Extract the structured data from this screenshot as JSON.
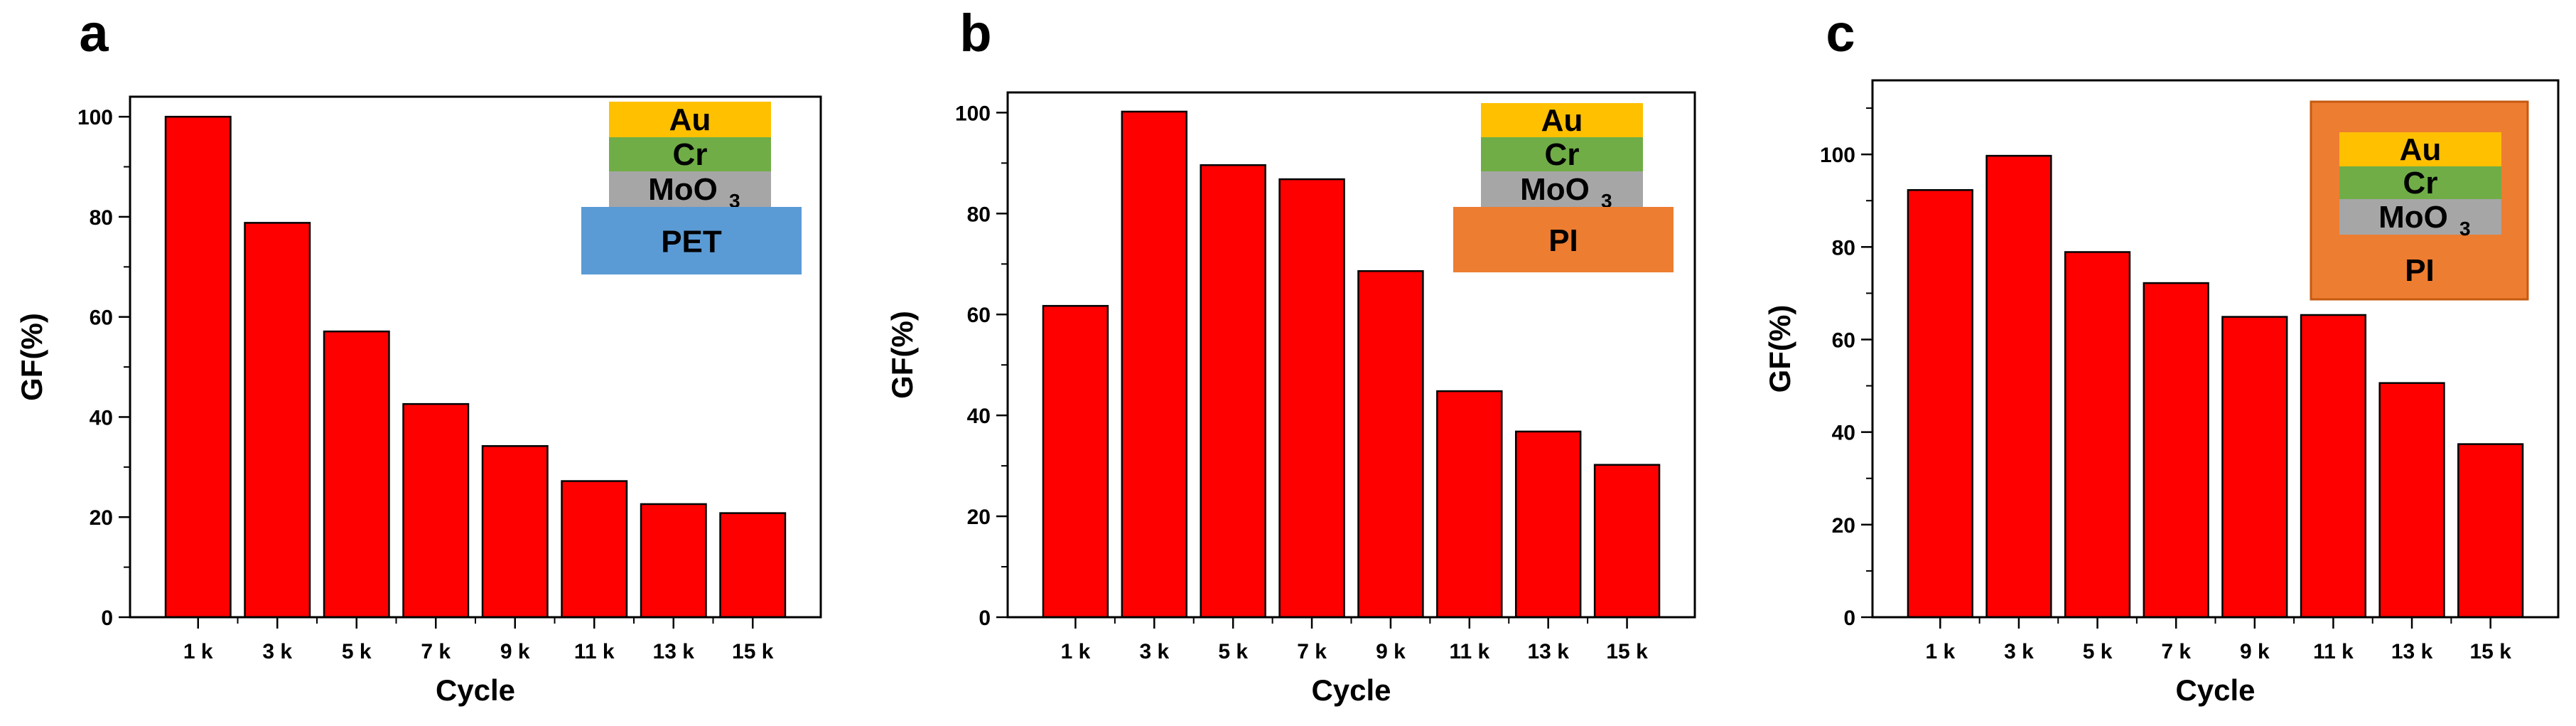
{
  "figure": {
    "panels": [
      {
        "letter": "a",
        "substrate": "PET",
        "inset_layers": [
          "Au",
          "Cr",
          "MoO",
          "PET"
        ],
        "inset_subscript": "3",
        "inset_style": "stack",
        "colors": {
          "au": "#ffc000",
          "cr": "#70ad47",
          "moo3": "#a6a6a6",
          "substrate": "#5b9bd5",
          "bar": "#ff0000"
        }
      },
      {
        "letter": "b",
        "substrate": "PI",
        "inset_layers": [
          "Au",
          "Cr",
          "MoO",
          "PI"
        ],
        "inset_subscript": "3",
        "inset_style": "stack",
        "colors": {
          "au": "#ffc000",
          "cr": "#70ad47",
          "moo3": "#a6a6a6",
          "substrate": "#ed7d31",
          "bar": "#ff0000"
        }
      },
      {
        "letter": "c",
        "substrate": "PI",
        "inset_layers": [
          "Au",
          "Cr",
          "MoO",
          "PI"
        ],
        "inset_subscript": "3",
        "inset_style": "embedded",
        "colors": {
          "au": "#ffc000",
          "cr": "#70ad47",
          "moo3": "#a6a6a6",
          "substrate": "#ed7d31",
          "bar": "#ff0000"
        }
      }
    ]
  },
  "chart_data": [
    {
      "type": "bar",
      "categories": [
        "1 k",
        "3 k",
        "5 k",
        "7 k",
        "9 k",
        "11 k",
        "13 k",
        "15 k"
      ],
      "values": [
        100,
        78.8,
        57.1,
        42.6,
        34.2,
        27.2,
        22.6,
        20.8
      ],
      "xlabel": "Cycle",
      "ylabel": "GF(%)",
      "ylim": [
        0,
        104
      ],
      "yticks": [
        0,
        20,
        40,
        60,
        80,
        100
      ],
      "grid": false
    },
    {
      "type": "bar",
      "categories": [
        "1 k",
        "3 k",
        "5 k",
        "7 k",
        "9 k",
        "11 k",
        "13 k",
        "15 k"
      ],
      "values": [
        61.7,
        100.2,
        89.6,
        86.8,
        68.6,
        44.8,
        36.8,
        30.2
      ],
      "xlabel": "Cycle",
      "ylabel": "GF(%)",
      "ylim": [
        0,
        104
      ],
      "yticks": [
        0,
        20,
        40,
        60,
        80,
        100
      ],
      "grid": false
    },
    {
      "type": "bar",
      "categories": [
        "1 k",
        "3 k",
        "5 k",
        "7 k",
        "9 k",
        "11 k",
        "13 k",
        "15 k"
      ],
      "values": [
        92.3,
        99.7,
        78.9,
        72.2,
        64.9,
        65.3,
        50.6,
        37.4
      ],
      "xlabel": "Cycle",
      "ylabel": "GF(%)",
      "ylim": [
        0,
        116
      ],
      "yticks": [
        0,
        20,
        40,
        60,
        80,
        100
      ],
      "grid": false
    }
  ]
}
